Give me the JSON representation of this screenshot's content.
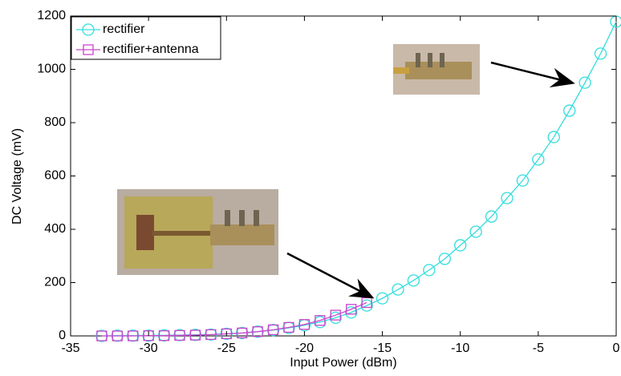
{
  "chart_data": {
    "type": "line",
    "xlabel": "Input Power (dBm)",
    "ylabel": "DC Voltage (mV)",
    "xlim": [
      -35,
      0
    ],
    "ylim": [
      0,
      1200
    ],
    "xticks": [
      -35,
      -30,
      -25,
      -20,
      -15,
      -10,
      -5,
      0
    ],
    "yticks": [
      0,
      200,
      400,
      600,
      800,
      1000,
      1200
    ],
    "grid": false,
    "legend": "upper left",
    "series": [
      {
        "name": "rectifier",
        "color": "#33dddd",
        "marker": "circle",
        "x": [
          -33,
          -32,
          -31,
          -30,
          -29,
          -28,
          -27,
          -26,
          -25,
          -24,
          -23,
          -22,
          -21,
          -20,
          -19,
          -18,
          -17,
          -16,
          -15,
          -14,
          -13,
          -12,
          -11,
          -10,
          -9,
          -8,
          -7,
          -6,
          -5,
          -4,
          -3,
          -2,
          -1,
          0
        ],
        "values": [
          0,
          1,
          1,
          1,
          2,
          3,
          4,
          5,
          8,
          11,
          16,
          22,
          30,
          40,
          52,
          68,
          88,
          114,
          141,
          174,
          208,
          247,
          289,
          340,
          391,
          448,
          517,
          583,
          662,
          746,
          845,
          950,
          1059,
          1179
        ]
      },
      {
        "name": "rectifier+antenna",
        "color": "#cc44cc",
        "marker": "square",
        "x": [
          -33,
          -32,
          -31,
          -30,
          -29,
          -28,
          -27,
          -26,
          -25,
          -24,
          -23,
          -22,
          -21,
          -20,
          -19,
          -18,
          -17,
          -16
        ],
        "values": [
          0,
          0,
          0,
          1,
          1,
          2,
          3,
          5,
          8,
          11,
          16,
          23,
          32,
          43,
          58,
          78,
          100,
          125
        ]
      }
    ]
  }
}
